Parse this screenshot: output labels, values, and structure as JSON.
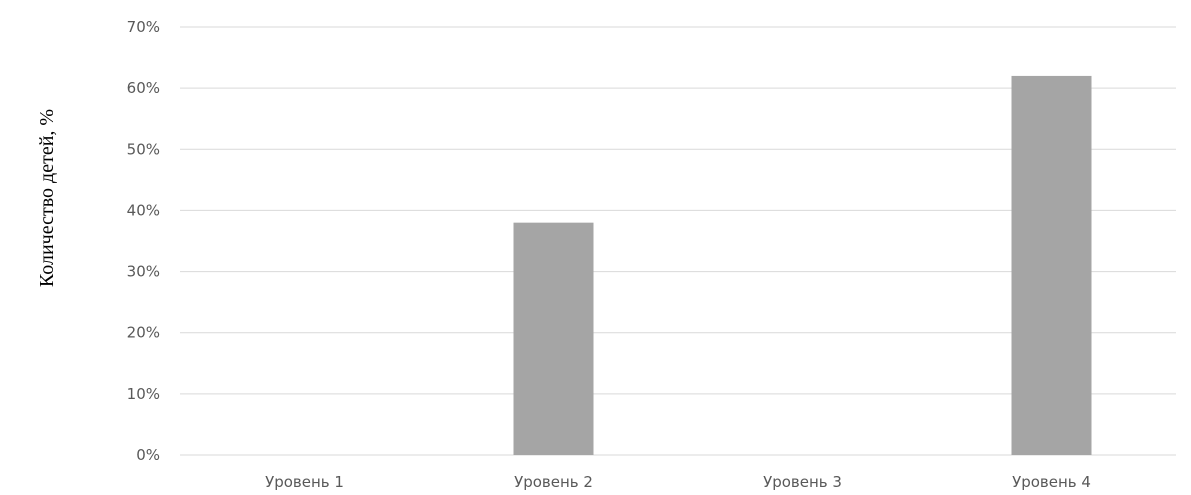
{
  "chart_data": {
    "type": "bar",
    "categories": [
      "Уровень 1",
      "Уровень 2",
      "Уровень 3",
      "Уровень 4"
    ],
    "values": [
      0,
      38,
      0,
      62
    ],
    "ylabel": "Количество детей, %",
    "xlabel": "",
    "title": "",
    "ylim": [
      0,
      70
    ],
    "yticks": [
      0,
      10,
      20,
      30,
      40,
      50,
      60,
      70
    ],
    "ytick_labels": [
      "0%",
      "10%",
      "20%",
      "30%",
      "40%",
      "50%",
      "60%",
      "70%"
    ],
    "grid": true,
    "legend": "none",
    "colors": {
      "bar": "#a5a5a5",
      "grid": "#d9d9d9",
      "axis": "#d9d9d9",
      "tick_text": "#595959"
    }
  }
}
